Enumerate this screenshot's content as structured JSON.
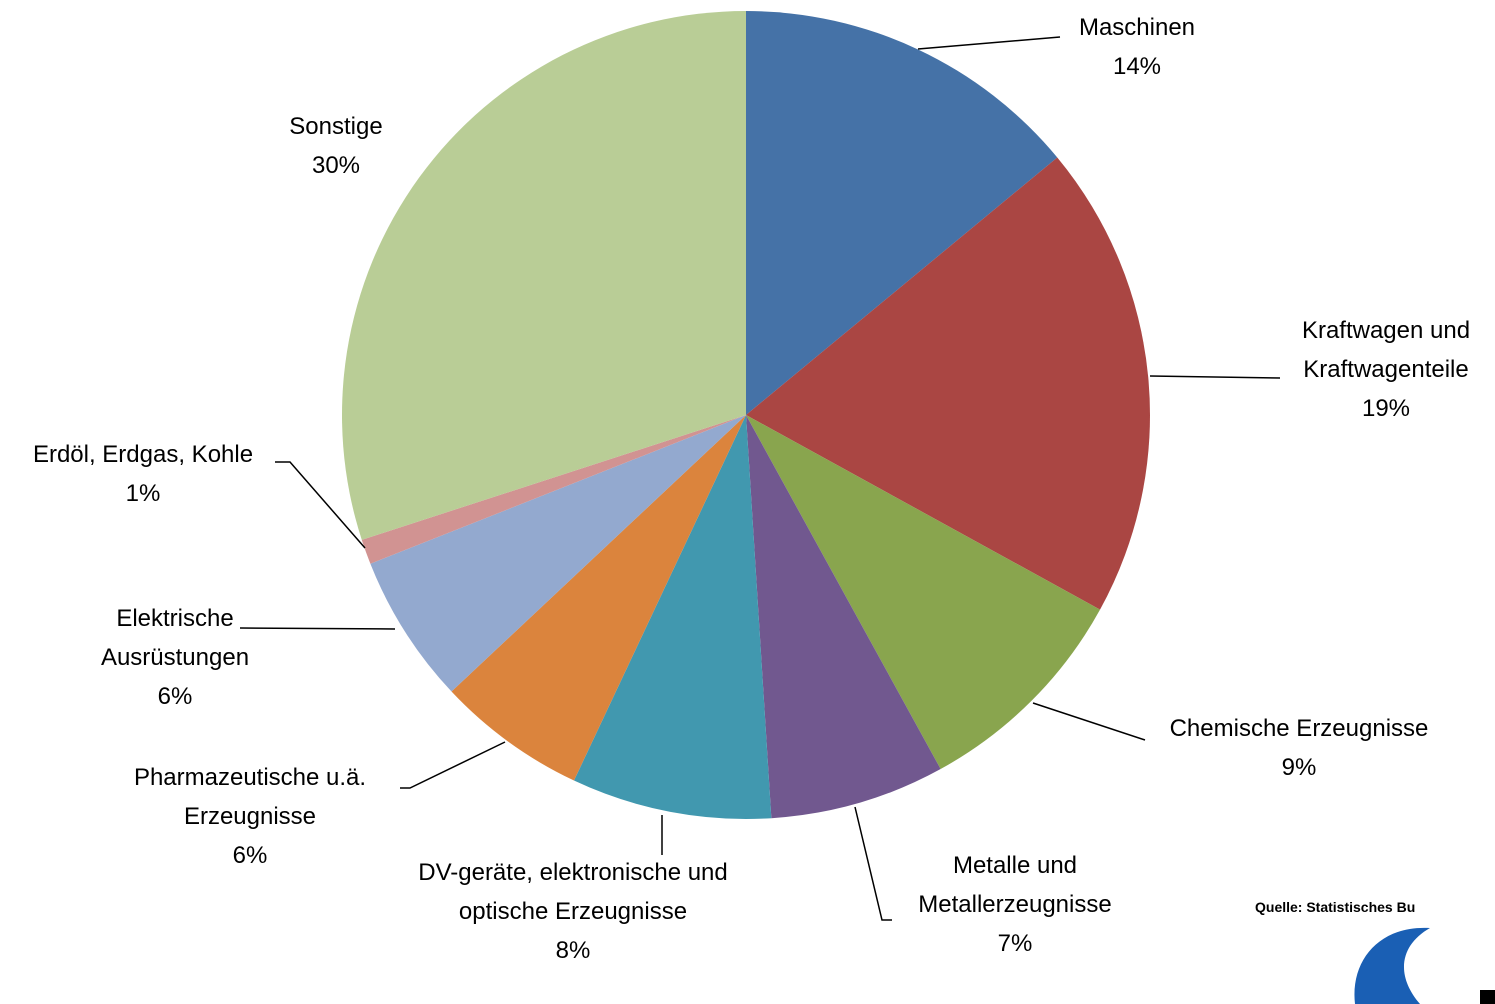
{
  "chart_data": {
    "type": "pie",
    "categories": [
      "Maschinen",
      "Kraftwagen und Kraftwagenteile",
      "Chemische Erzeugnisse",
      "Metalle und Metallerzeugnisse",
      "DV-geräte, elektronische und optische Erzeugnisse",
      "Pharmazeutische u.ä. Erzeugnisse",
      "Elektrische Ausrüstungen",
      "Erdöl, Erdgas, Kohle",
      "Sonstige"
    ],
    "values": [
      14,
      19,
      9,
      7,
      8,
      6,
      6,
      1,
      30
    ],
    "value_labels": [
      "14%",
      "19%",
      "9%",
      "7%",
      "8%",
      "6%",
      "6%",
      "1%",
      "30%"
    ],
    "colors": [
      "#4572a7",
      "#aa4643",
      "#89a54e",
      "#71588f",
      "#4198af",
      "#db843d",
      "#93a9cf",
      "#d19392",
      "#b9cd96"
    ],
    "source": "Quelle: Statistisches Bu"
  }
}
